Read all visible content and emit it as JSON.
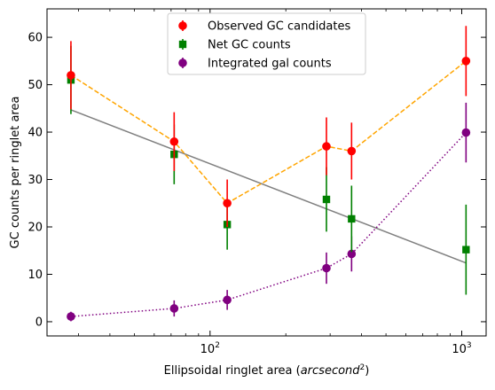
{
  "chart_data": {
    "type": "scatter",
    "title": "",
    "xlabel_prefix": "Ellipsoidal ringlet area (",
    "xlabel_unit": "arcsecond",
    "xlabel_exp": "2",
    "xlabel_suffix": ")",
    "ylabel": "GC counts per ringlet area",
    "xscale": "log",
    "xlim": [
      22.5,
      1250
    ],
    "ylim": [
      -3,
      66
    ],
    "yticks": [
      0,
      10,
      20,
      30,
      40,
      50,
      60
    ],
    "xticks_major": [
      {
        "value": 100,
        "base": "10",
        "exp": "2"
      },
      {
        "value": 1000,
        "base": "10",
        "exp": "3"
      }
    ],
    "grid": false,
    "legend_position": "upper center",
    "ticks_direction": "in",
    "ticks_mirrored": true,
    "series": [
      {
        "name": "Observed GC candidates",
        "color": "#ff0000",
        "marker": "circle",
        "x": [
          28,
          72,
          117,
          290,
          365,
          1040
        ],
        "y": [
          52,
          38,
          25,
          37,
          36,
          55
        ],
        "yerr": [
          7.2,
          6.2,
          5.0,
          6.1,
          6.0,
          7.4
        ],
        "line": {
          "style": "dashed",
          "color": "#ffa500"
        }
      },
      {
        "name": "Net GC counts",
        "color": "#008000",
        "marker": "square",
        "x": [
          28,
          72,
          117,
          290,
          365,
          1040
        ],
        "y": [
          51,
          35.3,
          20.5,
          25.8,
          21.7,
          15.2
        ],
        "yerr": [
          7.2,
          6.3,
          5.3,
          6.8,
          7.0,
          9.5
        ],
        "line": null
      },
      {
        "name": "Integrated gal counts",
        "color": "#800080",
        "marker": "circle",
        "x": [
          28,
          72,
          117,
          290,
          365,
          1040
        ],
        "y": [
          1.1,
          2.8,
          4.6,
          11.3,
          14.3,
          39.9
        ],
        "yerr": [
          1.0,
          1.7,
          2.1,
          3.3,
          3.7,
          6.3
        ],
        "line": {
          "style": "dotted",
          "color": "#800080"
        }
      }
    ],
    "fit_line": {
      "color": "#808080",
      "x": [
        28,
        1040
      ],
      "y": [
        44.7,
        12.4
      ]
    }
  }
}
